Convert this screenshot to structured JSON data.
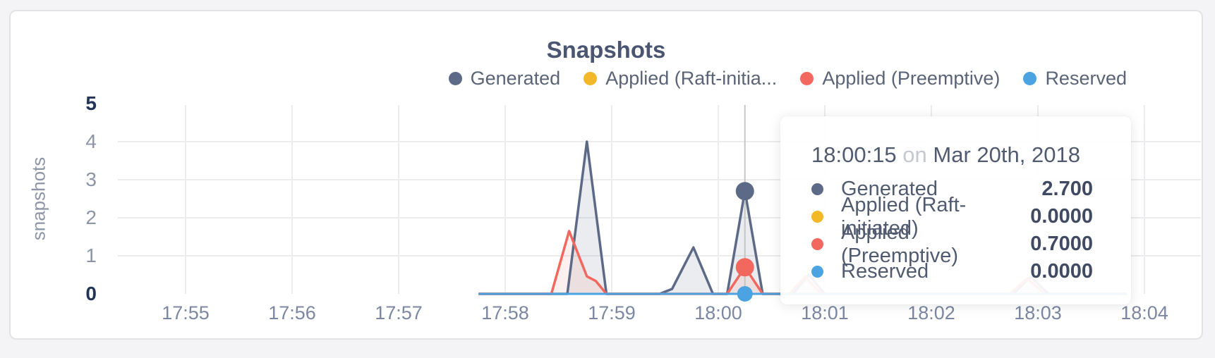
{
  "chart": {
    "title": "Snapshots",
    "ylabel": "snapshots",
    "legend": [
      {
        "label": "Generated",
        "color": "#5d6a87"
      },
      {
        "label": "Applied (Raft-initia...",
        "color": "#f2b827"
      },
      {
        "label": "Applied (Preemptive)",
        "color": "#f2685f"
      },
      {
        "label": "Reserved",
        "color": "#4ba3e1"
      }
    ]
  },
  "chart_data": {
    "type": "area",
    "title": "Snapshots",
    "xlabel": "",
    "ylabel": "snapshots",
    "ylim": [
      0,
      5
    ],
    "grid": true,
    "legend_position": "top-right",
    "x_time_reference": "18:00:00",
    "x_range_sec": [
      -135,
      230
    ],
    "x_ticks": [
      {
        "label": "17:55",
        "min": -5
      },
      {
        "label": "17:56",
        "min": -4
      },
      {
        "label": "17:57",
        "min": -3
      },
      {
        "label": "17:58",
        "min": -2
      },
      {
        "label": "17:59",
        "min": -1
      },
      {
        "label": "18:00",
        "min": 0
      },
      {
        "label": "18:01",
        "min": 1
      },
      {
        "label": "18:02",
        "min": 2
      },
      {
        "label": "18:03",
        "min": 3
      },
      {
        "label": "18:04",
        "min": 4
      }
    ],
    "y_ticks": [
      {
        "label": "5",
        "v": 5,
        "bold": true
      },
      {
        "label": "4",
        "v": 4,
        "bold": false
      },
      {
        "label": "3",
        "v": 3,
        "bold": false
      },
      {
        "label": "2",
        "v": 2,
        "bold": false
      },
      {
        "label": "1",
        "v": 1,
        "bold": false
      },
      {
        "label": "0",
        "v": 0,
        "bold": true
      }
    ],
    "series": [
      {
        "name": "Generated",
        "color": "#5d6a87",
        "fill": "rgba(93,106,135,0.13)",
        "width": 3.5,
        "points": [
          [
            -135,
            0
          ],
          [
            -85,
            0
          ],
          [
            -74,
            4.0
          ],
          [
            -63,
            0
          ],
          [
            -33,
            0
          ],
          [
            -26,
            0.13
          ],
          [
            -14,
            1.22
          ],
          [
            -3,
            0
          ],
          [
            5,
            0
          ],
          [
            15,
            2.7
          ],
          [
            25,
            0
          ],
          [
            42,
            0
          ],
          [
            51,
            0.5
          ],
          [
            60,
            0
          ],
          [
            166,
            0
          ],
          [
            176,
            0.45
          ],
          [
            186,
            0
          ],
          [
            230,
            0
          ]
        ]
      },
      {
        "name": "Applied (Raft-initiated)",
        "color": "#f2b827",
        "fill": null,
        "width": 3,
        "points": [
          [
            -135,
            0
          ],
          [
            230,
            0
          ]
        ]
      },
      {
        "name": "Applied (Preemptive)",
        "color": "#f2685f",
        "fill": "rgba(242,104,95,0.10)",
        "width": 3.5,
        "points": [
          [
            -135,
            0
          ],
          [
            -94,
            0
          ],
          [
            -84,
            1.65
          ],
          [
            -74,
            0.46
          ],
          [
            -69,
            0.34
          ],
          [
            -63,
            0
          ],
          [
            5,
            0
          ],
          [
            15,
            0.7
          ],
          [
            25,
            0
          ],
          [
            40,
            0
          ],
          [
            49,
            0.45
          ],
          [
            58,
            0
          ],
          [
            164,
            0
          ],
          [
            174,
            0.4
          ],
          [
            184,
            0
          ],
          [
            230,
            0
          ]
        ]
      },
      {
        "name": "Reserved",
        "color": "#4ba3e1",
        "fill": null,
        "width": 3,
        "points": [
          [
            -135,
            0
          ],
          [
            230,
            0
          ]
        ]
      }
    ],
    "hover": {
      "time_label": "18:00:15",
      "time_offset_sec": 15,
      "line_color": "#c6c6c6",
      "dots": [
        {
          "series": "Generated",
          "v": 2.7,
          "r": 13
        },
        {
          "series": "Applied (Preemptive)",
          "v": 0.7,
          "r": 13
        },
        {
          "series": "Reserved",
          "v": 0,
          "r": 11
        }
      ]
    }
  },
  "tooltip": {
    "time": "18:00:15",
    "on_word": "on",
    "date": "Mar 20th, 2018",
    "rows": [
      {
        "label": "Generated",
        "color": "#5d6a87",
        "value": "2.700"
      },
      {
        "label": "Applied (Raft-initiated)",
        "color": "#f2b827",
        "value": "0.0000"
      },
      {
        "label": "Applied (Preemptive)",
        "color": "#f2685f",
        "value": "0.7000"
      },
      {
        "label": "Reserved",
        "color": "#4ba3e1",
        "value": "0.0000"
      }
    ]
  }
}
